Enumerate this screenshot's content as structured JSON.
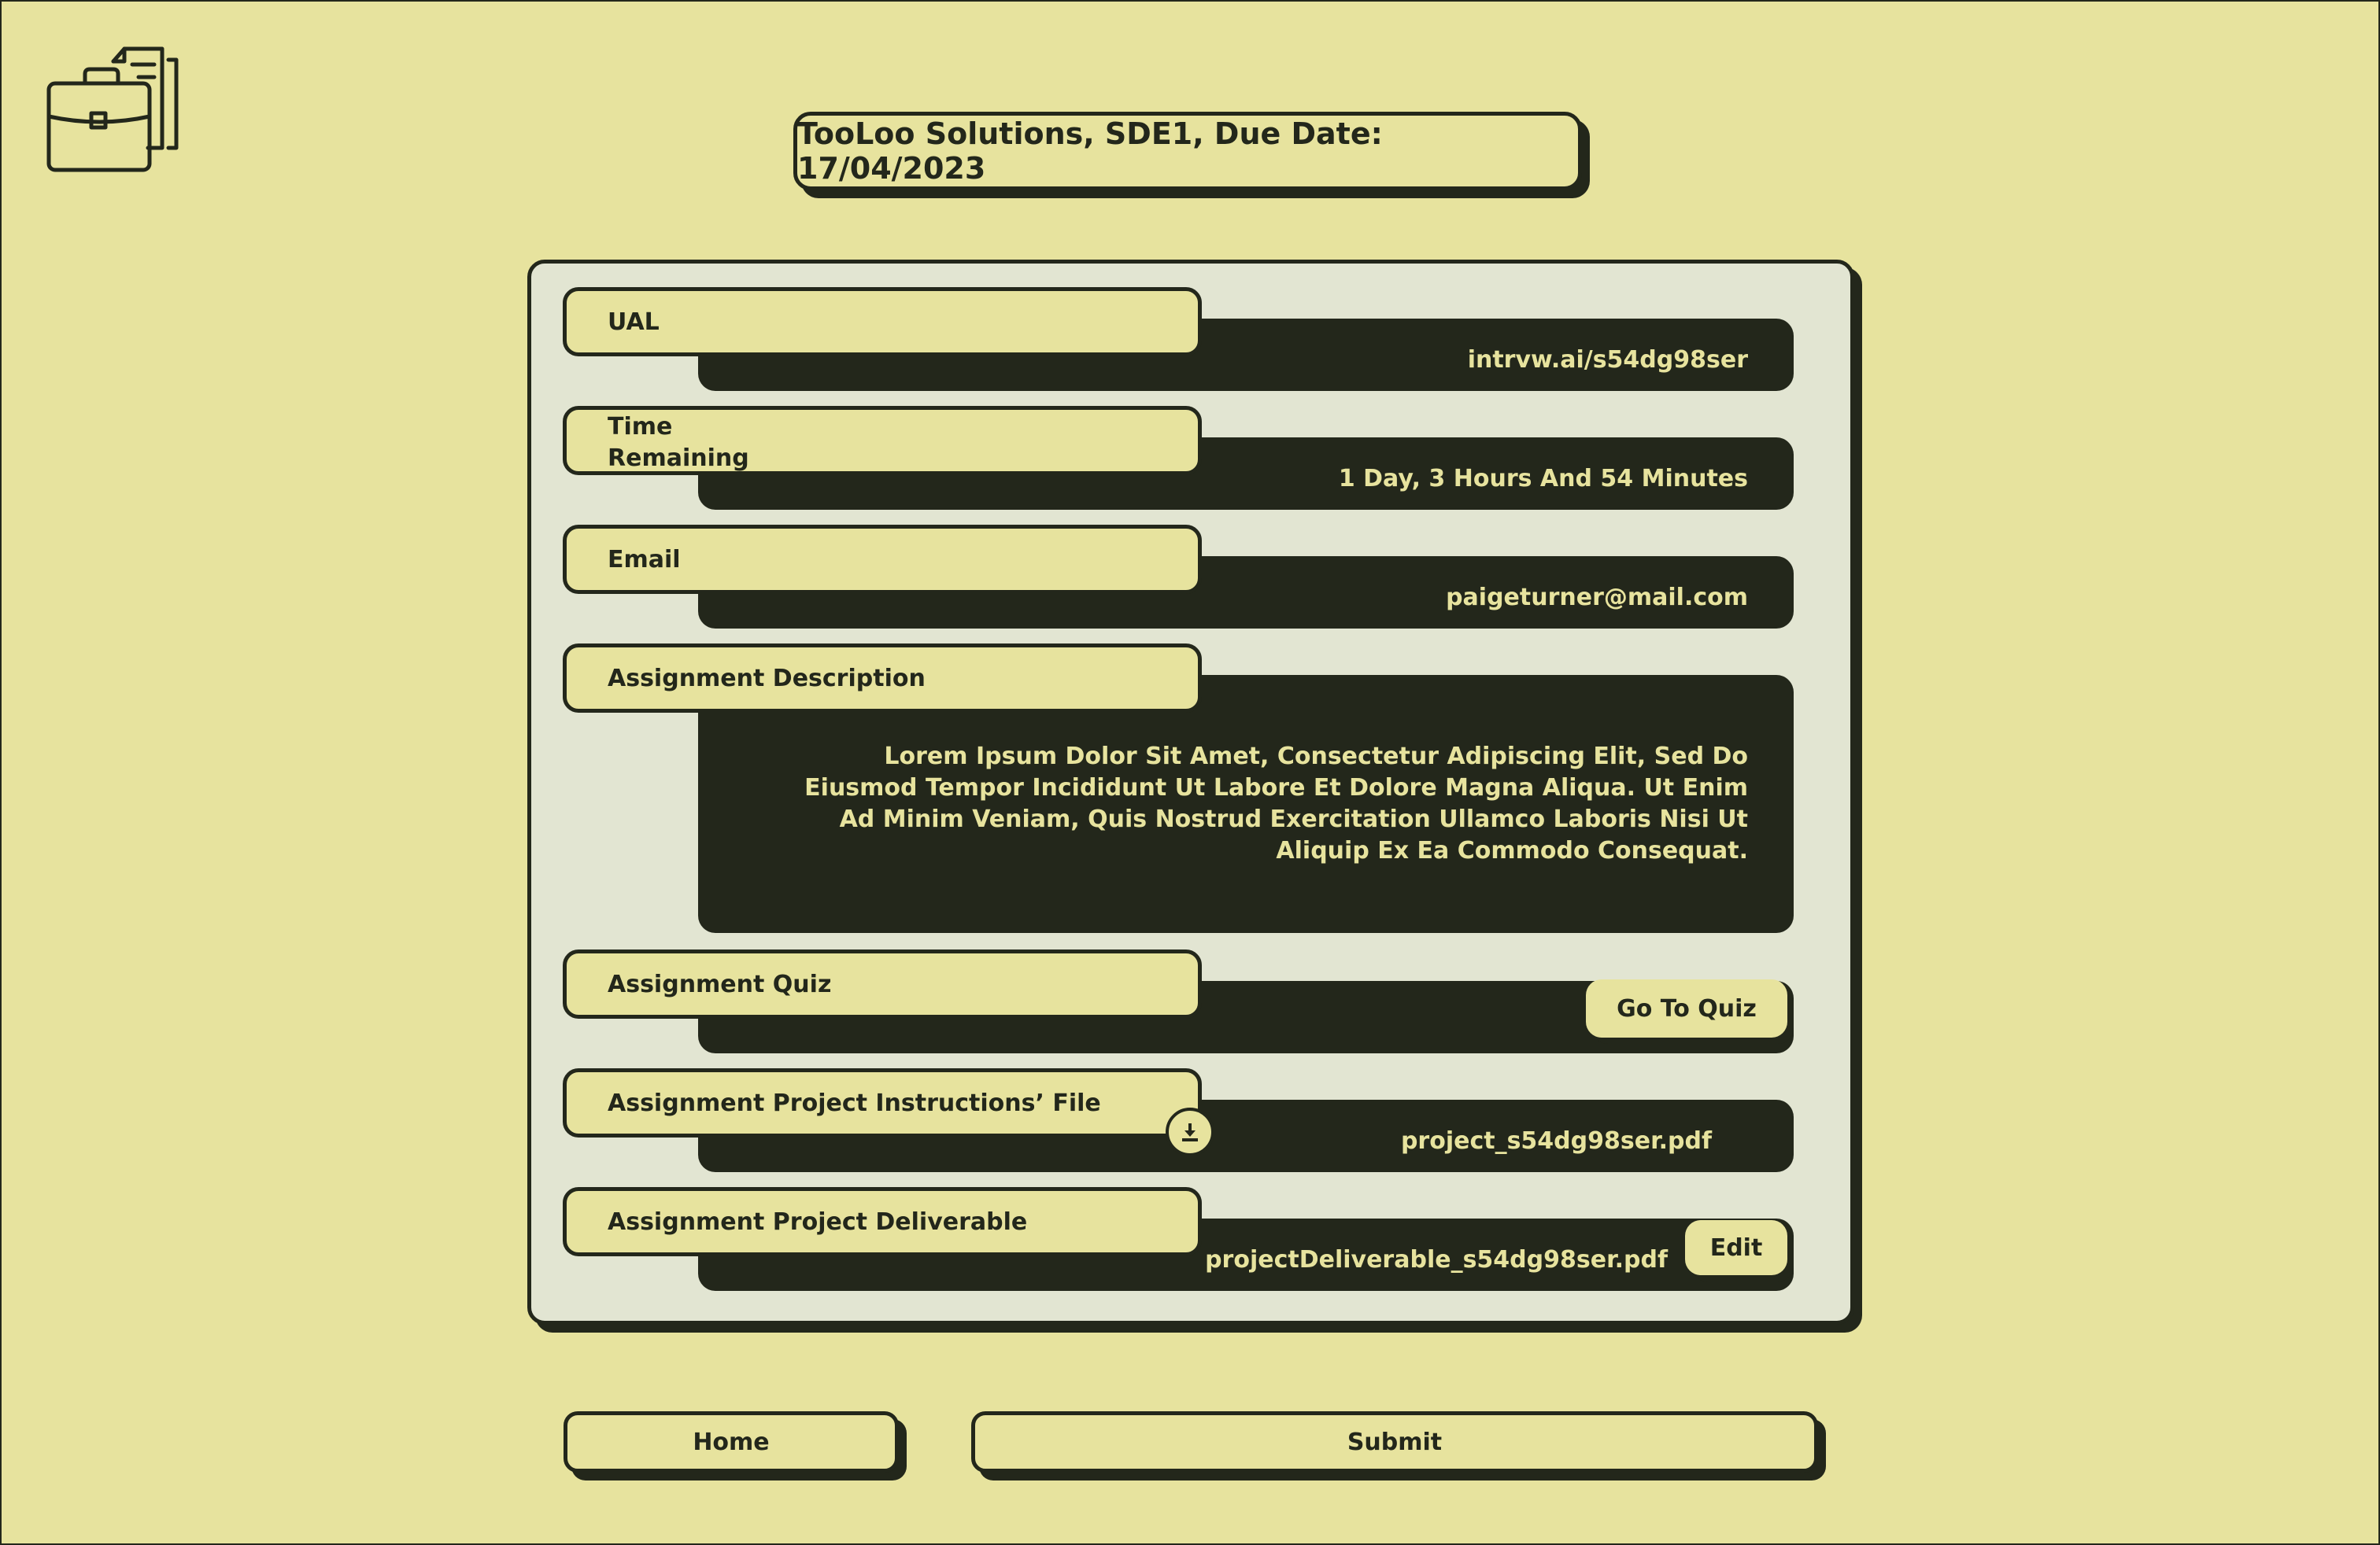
{
  "header": {
    "logo_icon": "briefcase-documents-icon",
    "title": "TooLoo Solutions, SDE1, Due Date: 17/04/2023"
  },
  "fields": {
    "ual": {
      "label": "UAL",
      "value": "intrvw.ai/s54dg98ser"
    },
    "time_remaining": {
      "label_line1": "Time",
      "label_line2": "Remaining",
      "value": "1 Day, 3 Hours And 54 Minutes"
    },
    "email": {
      "label": "Email",
      "value": "paigeturner@mail.com"
    },
    "description": {
      "label": "Assignment Description",
      "value": "Lorem Ipsum Dolor Sit Amet, Consectetur Adipiscing Elit, Sed Do Eiusmod Tempor Incididunt Ut Labore Et Dolore Magna Aliqua. Ut Enim Ad Minim Veniam, Quis Nostrud Exercitation Ullamco Laboris Nisi Ut Aliquip Ex Ea Commodo Consequat."
    },
    "quiz": {
      "label": "Assignment Quiz",
      "button": "Go To Quiz"
    },
    "instructions_file": {
      "label": "Assignment Project Instructions’ File",
      "value": "project_s54dg98ser.pdf",
      "icon": "download-icon"
    },
    "deliverable": {
      "label": "Assignment Project Deliverable",
      "value": "projectDeliverable_s54dg98ser.pdf",
      "button": "Edit"
    }
  },
  "footer": {
    "home_label": "Home",
    "submit_label": "Submit"
  },
  "colors": {
    "background": "#e7e39e",
    "panel": "#e2e5d2",
    "dark": "#23271b"
  }
}
